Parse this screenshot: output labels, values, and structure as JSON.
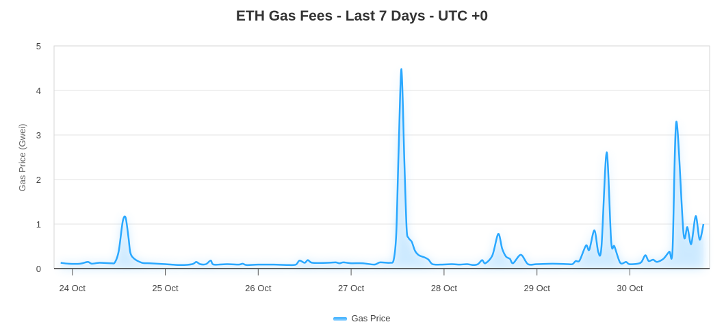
{
  "chart_data": {
    "type": "area",
    "title": "ETH Gas Fees - Last 7 Days - UTC +0",
    "xlabel": "",
    "ylabel": "Gas Price (Gwei)",
    "ylim": [
      0,
      5
    ],
    "yticks": [
      "0",
      "1",
      "2",
      "3",
      "4",
      "5"
    ],
    "xticks": [
      "24 Oct",
      "25 Oct",
      "26 Oct",
      "27 Oct",
      "28 Oct",
      "29 Oct",
      "30 Oct"
    ],
    "grid": "horizontal",
    "legend_position": "bottom",
    "color": "#2aa8ff",
    "series": [
      {
        "name": "Gas Price",
        "points": [
          [
            "Oct 23 21:00",
            0.13
          ],
          [
            "Oct 23 23:00",
            0.11
          ],
          [
            "Oct 24 02:00",
            0.11
          ],
          [
            "Oct 24 04:00",
            0.15
          ],
          [
            "Oct 24 05:00",
            0.11
          ],
          [
            "Oct 24 07:00",
            0.13
          ],
          [
            "Oct 24 10:00",
            0.12
          ],
          [
            "Oct 24 11:00",
            0.14
          ],
          [
            "Oct 24 12:00",
            0.4
          ],
          [
            "Oct 24 13:00",
            1.05
          ],
          [
            "Oct 24 13:45",
            1.15
          ],
          [
            "Oct 24 14:30",
            0.7
          ],
          [
            "Oct 24 15:00",
            0.35
          ],
          [
            "Oct 24 16:00",
            0.22
          ],
          [
            "Oct 24 18:00",
            0.13
          ],
          [
            "Oct 24 20:00",
            0.12
          ],
          [
            "Oct 25 00:00",
            0.1
          ],
          [
            "Oct 25 04:00",
            0.08
          ],
          [
            "Oct 25 07:00",
            0.1
          ],
          [
            "Oct 25 08:00",
            0.15
          ],
          [
            "Oct 25 09:00",
            0.1
          ],
          [
            "Oct 25 10:30",
            0.1
          ],
          [
            "Oct 25 11:45",
            0.18
          ],
          [
            "Oct 25 12:30",
            0.09
          ],
          [
            "Oct 25 16:00",
            0.1
          ],
          [
            "Oct 25 19:00",
            0.09
          ],
          [
            "Oct 25 20:00",
            0.11
          ],
          [
            "Oct 25 21:00",
            0.08
          ],
          [
            "Oct 26 00:00",
            0.09
          ],
          [
            "Oct 26 04:00",
            0.09
          ],
          [
            "Oct 26 08:00",
            0.08
          ],
          [
            "Oct 26 09:45",
            0.09
          ],
          [
            "Oct 26 10:40",
            0.18
          ],
          [
            "Oct 26 12:00",
            0.13
          ],
          [
            "Oct 26 12:50",
            0.19
          ],
          [
            "Oct 26 14:00",
            0.13
          ],
          [
            "Oct 26 18:00",
            0.13
          ],
          [
            "Oct 26 20:00",
            0.14
          ],
          [
            "Oct 26 21:00",
            0.12
          ],
          [
            "Oct 26 22:00",
            0.14
          ],
          [
            "Oct 27 00:00",
            0.12
          ],
          [
            "Oct 27 03:00",
            0.12
          ],
          [
            "Oct 27 06:00",
            0.09
          ],
          [
            "Oct 27 07:30",
            0.14
          ],
          [
            "Oct 27 10:00",
            0.13
          ],
          [
            "Oct 27 11:00",
            0.2
          ],
          [
            "Oct 27 11:40",
            0.8
          ],
          [
            "Oct 27 12:15",
            2.6
          ],
          [
            "Oct 27 13:00",
            4.48
          ],
          [
            "Oct 27 13:45",
            2.4
          ],
          [
            "Oct 27 14:20",
            0.9
          ],
          [
            "Oct 27 14:50",
            0.69
          ],
          [
            "Oct 27 15:40",
            0.6
          ],
          [
            "Oct 27 16:30",
            0.4
          ],
          [
            "Oct 27 17:30",
            0.3
          ],
          [
            "Oct 27 19:00",
            0.25
          ],
          [
            "Oct 27 20:00",
            0.2
          ],
          [
            "Oct 27 21:00",
            0.1
          ],
          [
            "Oct 27 23:00",
            0.09
          ],
          [
            "Oct 28 02:00",
            0.1
          ],
          [
            "Oct 28 04:00",
            0.09
          ],
          [
            "Oct 28 06:00",
            0.1
          ],
          [
            "Oct 28 07:30",
            0.08
          ],
          [
            "Oct 28 08:45",
            0.1
          ],
          [
            "Oct 28 09:50",
            0.19
          ],
          [
            "Oct 28 10:40",
            0.12
          ],
          [
            "Oct 28 12:30",
            0.3
          ],
          [
            "Oct 28 14:00",
            0.78
          ],
          [
            "Oct 28 15:00",
            0.45
          ],
          [
            "Oct 28 16:00",
            0.27
          ],
          [
            "Oct 28 17:00",
            0.22
          ],
          [
            "Oct 28 17:50",
            0.12
          ],
          [
            "Oct 28 19:50",
            0.31
          ],
          [
            "Oct 28 21:40",
            0.1
          ],
          [
            "Oct 29 00:00",
            0.1
          ],
          [
            "Oct 29 04:00",
            0.11
          ],
          [
            "Oct 29 08:00",
            0.1
          ],
          [
            "Oct 29 09:10",
            0.1
          ],
          [
            "Oct 29 10:00",
            0.17
          ],
          [
            "Oct 29 11:00",
            0.18
          ],
          [
            "Oct 29 12:40",
            0.52
          ],
          [
            "Oct 29 13:30",
            0.42
          ],
          [
            "Oct 29 14:50",
            0.86
          ],
          [
            "Oct 29 15:50",
            0.37
          ],
          [
            "Oct 29 16:40",
            0.5
          ],
          [
            "Oct 29 18:00",
            2.61
          ],
          [
            "Oct 29 19:10",
            0.6
          ],
          [
            "Oct 29 20:00",
            0.5
          ],
          [
            "Oct 29 21:30",
            0.13
          ],
          [
            "Oct 29 23:00",
            0.15
          ],
          [
            "Oct 29 23:50",
            0.1
          ],
          [
            "Oct 30 02:00",
            0.11
          ],
          [
            "Oct 30 03:00",
            0.15
          ],
          [
            "Oct 30 04:00",
            0.3
          ],
          [
            "Oct 30 04:50",
            0.17
          ],
          [
            "Oct 30 06:00",
            0.2
          ],
          [
            "Oct 30 07:00",
            0.15
          ],
          [
            "Oct 30 08:40",
            0.22
          ],
          [
            "Oct 30 10:10",
            0.38
          ],
          [
            "Oct 30 11:00",
            0.39
          ],
          [
            "Oct 30 12:00",
            3.3
          ],
          [
            "Oct 30 13:50",
            0.8
          ],
          [
            "Oct 30 14:50",
            0.93
          ],
          [
            "Oct 30 15:50",
            0.55
          ],
          [
            "Oct 30 17:00",
            1.18
          ],
          [
            "Oct 30 18:00",
            0.65
          ],
          [
            "Oct 30 19:00",
            1.0
          ]
        ]
      }
    ]
  }
}
